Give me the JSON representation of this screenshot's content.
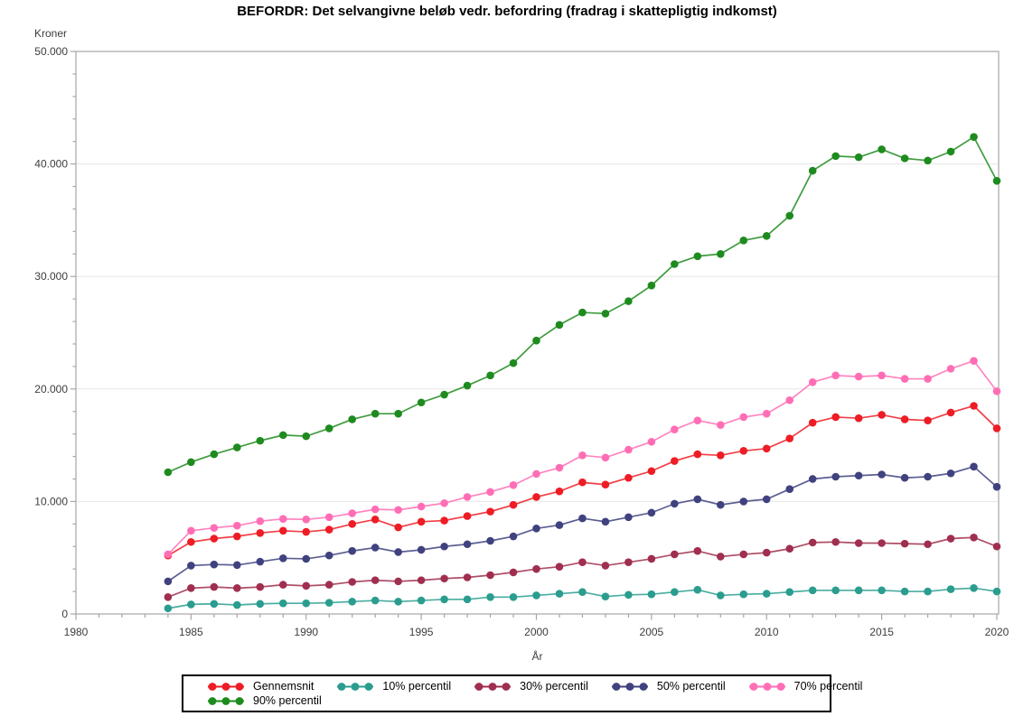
{
  "title": "BEFORDR: Det selvangivne beløb vedr. befordring (fradrag i skattepligtig indkomst)",
  "axes": {
    "y_label": "Kroner",
    "x_label": "År",
    "y_ticks": {
      "values": [
        0,
        10000,
        20000,
        30000,
        40000,
        50000
      ],
      "labels": [
        "0",
        "10.000",
        "20.000",
        "30.000",
        "40.000",
        "50.000"
      ]
    },
    "y_minor_step": 2000,
    "x_ticks": {
      "values": [
        1980,
        1985,
        1990,
        1995,
        2000,
        2005,
        2010,
        2015,
        2020
      ],
      "labels": [
        "1980",
        "1985",
        "1990",
        "1995",
        "2000",
        "2005",
        "2010",
        "2015",
        "2020"
      ]
    },
    "x_minor_step": 1
  },
  "legend": {
    "items": [
      "Gennemsnit",
      "10% percentil",
      "30% percentil",
      "50% percentil",
      "70% percentil",
      "90% percentil"
    ]
  },
  "style": {
    "frame_color": "#a6a6a6",
    "grid_color": "#e7e7e7",
    "tick_color": "#a6a6a6",
    "label_color": "#3d3d3d"
  },
  "chart_data": {
    "type": "line",
    "title": "BEFORDR: Det selvangivne beløb vedr. befordring (fradrag i skattepligtig indkomst)",
    "xlabel": "År",
    "ylabel": "Kroner",
    "xlim": [
      1980,
      2020
    ],
    "ylim": [
      0,
      50000
    ],
    "grid": "horizontal-major",
    "legend_position": "bottom-center",
    "marker": "filled-circle",
    "x": [
      1984,
      1985,
      1986,
      1987,
      1988,
      1989,
      1990,
      1991,
      1992,
      1993,
      1994,
      1995,
      1996,
      1997,
      1998,
      1999,
      2000,
      2001,
      2002,
      2003,
      2004,
      2005,
      2006,
      2007,
      2008,
      2009,
      2010,
      2011,
      2012,
      2013,
      2014,
      2015,
      2016,
      2017,
      2018,
      2019,
      2020
    ],
    "series": [
      {
        "name": "Gennemsnit",
        "color": "#ee1c25",
        "values": [
          5200,
          6400,
          6700,
          6900,
          7200,
          7400,
          7300,
          7500,
          8000,
          8400,
          7700,
          8200,
          8300,
          8700,
          9100,
          9700,
          10400,
          10900,
          11700,
          11500,
          12100,
          12700,
          13600,
          14200,
          14100,
          14500,
          14700,
          15600,
          17000,
          17500,
          17400,
          17700,
          17300,
          17200,
          17900,
          18500,
          16500
        ]
      },
      {
        "name": "10% percentil",
        "color": "#2a9d8f",
        "values": [
          500,
          850,
          900,
          800,
          900,
          950,
          950,
          1000,
          1100,
          1200,
          1100,
          1200,
          1300,
          1300,
          1500,
          1500,
          1650,
          1800,
          1950,
          1550,
          1700,
          1750,
          1950,
          2150,
          1650,
          1750,
          1800,
          1950,
          2100,
          2100,
          2100,
          2100,
          2000,
          2000,
          2200,
          2300,
          2000
        ]
      },
      {
        "name": "30% percentil",
        "color": "#a02f4f",
        "values": [
          1500,
          2300,
          2400,
          2300,
          2400,
          2600,
          2500,
          2600,
          2850,
          3000,
          2900,
          3000,
          3150,
          3250,
          3450,
          3700,
          4000,
          4200,
          4600,
          4300,
          4600,
          4900,
          5300,
          5600,
          5100,
          5300,
          5450,
          5800,
          6350,
          6400,
          6300,
          6300,
          6250,
          6200,
          6700,
          6800,
          6000
        ]
      },
      {
        "name": "50% percentil",
        "color": "#40427f",
        "values": [
          2900,
          4300,
          4400,
          4350,
          4650,
          4950,
          4900,
          5200,
          5600,
          5900,
          5500,
          5700,
          6000,
          6200,
          6500,
          6900,
          7600,
          7900,
          8500,
          8200,
          8600,
          9000,
          9800,
          10200,
          9700,
          10000,
          10200,
          11100,
          12000,
          12200,
          12300,
          12400,
          12100,
          12200,
          12500,
          13100,
          11300
        ]
      },
      {
        "name": "70% percentil",
        "color": "#ff6eb5",
        "values": [
          5300,
          7400,
          7650,
          7850,
          8250,
          8450,
          8400,
          8600,
          8950,
          9300,
          9250,
          9550,
          9850,
          10400,
          10850,
          11450,
          12450,
          13000,
          14100,
          13900,
          14600,
          15300,
          16400,
          17200,
          16800,
          17500,
          17800,
          19000,
          20600,
          21200,
          21100,
          21200,
          20900,
          20900,
          21800,
          22500,
          19800
        ]
      },
      {
        "name": "90% percentil",
        "color": "#1e8b1e",
        "values": [
          12600,
          13500,
          14200,
          14800,
          15400,
          15900,
          15800,
          16500,
          17300,
          17800,
          17800,
          18800,
          19500,
          20300,
          21200,
          22300,
          24300,
          25700,
          26800,
          26700,
          27800,
          29200,
          31100,
          31800,
          32000,
          33200,
          33600,
          35400,
          39400,
          40700,
          40600,
          41300,
          40500,
          40300,
          41100,
          42400,
          38500
        ]
      }
    ]
  }
}
